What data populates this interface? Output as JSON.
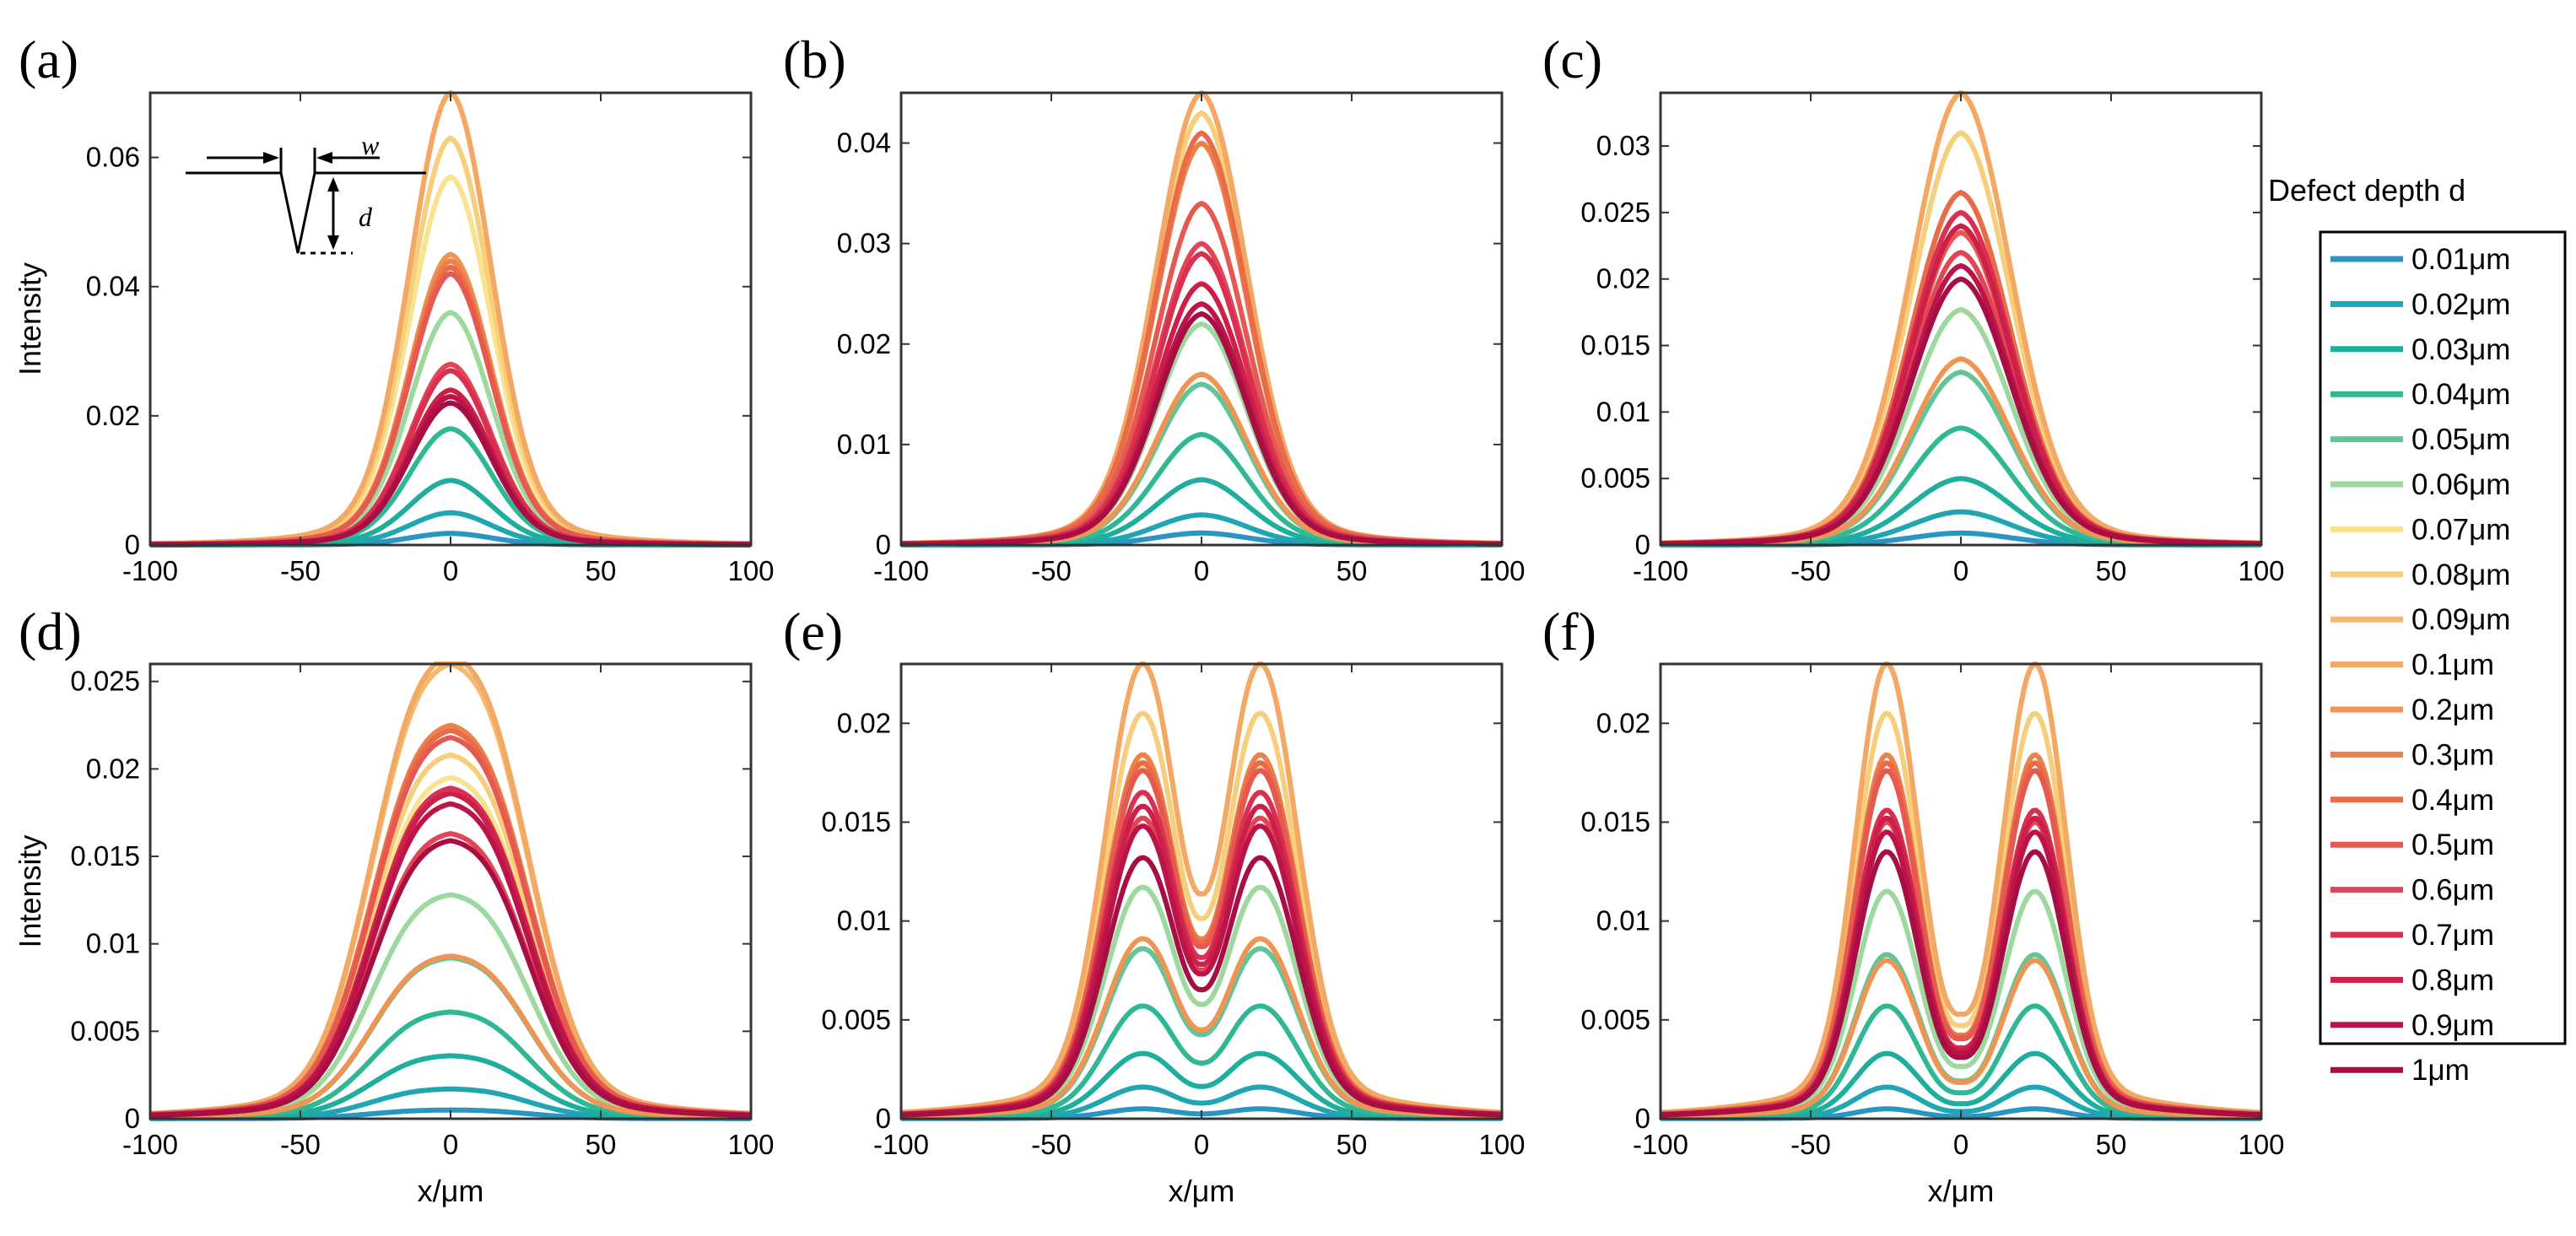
{
  "figure": {
    "ylabel": "Intensity",
    "xlabel": "x/μm",
    "xlim": [
      -100,
      100
    ],
    "xticks": [
      -100,
      -50,
      0,
      50,
      100
    ],
    "inset": {
      "w_label": "w",
      "d_label": "d"
    }
  },
  "legend": {
    "title": "Defect depth d",
    "entries": [
      {
        "label": "0.01μm",
        "color": "#2a94c4"
      },
      {
        "label": "0.02μm",
        "color": "#1fa6b2"
      },
      {
        "label": "0.03μm",
        "color": "#1eae9e"
      },
      {
        "label": "0.04μm",
        "color": "#30b896"
      },
      {
        "label": "0.05μm",
        "color": "#62c59a"
      },
      {
        "label": "0.06μm",
        "color": "#9dd89f"
      },
      {
        "label": "0.07μm",
        "color": "#fae28f"
      },
      {
        "label": "0.08μm",
        "color": "#f7ce7c"
      },
      {
        "label": "0.09μm",
        "color": "#f5ba6e"
      },
      {
        "label": "0.1μm",
        "color": "#f3a863"
      },
      {
        "label": "0.2μm",
        "color": "#ef9553"
      },
      {
        "label": "0.3μm",
        "color": "#ec8149"
      },
      {
        "label": "0.4μm",
        "color": "#e96c4a"
      },
      {
        "label": "0.5μm",
        "color": "#e65951"
      },
      {
        "label": "0.6μm",
        "color": "#e24556"
      },
      {
        "label": "0.7μm",
        "color": "#d9304f"
      },
      {
        "label": "0.8μm",
        "color": "#cc1f4a"
      },
      {
        "label": "0.9μm",
        "color": "#bb1448"
      },
      {
        "label": "1μm",
        "color": "#a70e44"
      }
    ]
  },
  "chart_data": [
    {
      "type": "line",
      "panel": "(a)",
      "ylabel": "Intensity",
      "xlabel": "",
      "ylim": [
        0,
        0.07
      ],
      "yticks": [
        0,
        0.02,
        0.04,
        0.06
      ],
      "ytick_labels": [
        "0",
        "0.02",
        "0.04",
        "0.06"
      ],
      "xticks": [
        -100,
        -50,
        0,
        50,
        100
      ],
      "xlim": [
        -100,
        100
      ],
      "x": [
        -100,
        -50,
        -25,
        0,
        25,
        50,
        100
      ],
      "profile": {
        "form": "gaussian",
        "sigma_um": 13.5,
        "separation_um": 0,
        "center_dip": 0
      },
      "peaks": [
        0.0018,
        0.005,
        0.01,
        0.018,
        0.027,
        0.036,
        0.057,
        0.063,
        0.07,
        0.07,
        0.045,
        0.044,
        0.043,
        0.042,
        0.028,
        0.027,
        0.024,
        0.023,
        0.022
      ]
    },
    {
      "type": "line",
      "panel": "(b)",
      "ylabel": "",
      "xlabel": "",
      "ylim": [
        0,
        0.045
      ],
      "yticks": [
        0,
        0.01,
        0.02,
        0.03,
        0.04
      ],
      "ytick_labels": [
        "0",
        "0.01",
        "0.02",
        "0.03",
        "0.04"
      ],
      "xticks": [
        -100,
        -50,
        0,
        50,
        100
      ],
      "xlim": [
        -100,
        100
      ],
      "x": [
        -100,
        -50,
        -25,
        0,
        25,
        50,
        100
      ],
      "profile": {
        "form": "gaussian",
        "sigma_um": 15,
        "separation_um": 0,
        "center_dip": 0
      },
      "peaks": [
        0.0012,
        0.003,
        0.0065,
        0.011,
        0.016,
        0.022,
        0.041,
        0.043,
        0.045,
        0.045,
        0.017,
        0.04,
        0.041,
        0.034,
        0.03,
        0.029,
        0.026,
        0.024,
        0.023
      ]
    },
    {
      "type": "line",
      "panel": "(c)",
      "ylabel": "",
      "xlabel": "",
      "ylim": [
        0,
        0.034
      ],
      "yticks": [
        0,
        0.005,
        0.01,
        0.015,
        0.02,
        0.025,
        0.03
      ],
      "ytick_labels": [
        "0",
        "0.005",
        "0.01",
        "0.015",
        "0.02",
        "0.025",
        "0.03"
      ],
      "xticks": [
        -100,
        -50,
        0,
        50,
        100
      ],
      "xlim": [
        -100,
        100
      ],
      "x": [
        -100,
        -50,
        -25,
        0,
        25,
        50,
        100
      ],
      "profile": {
        "form": "gaussian",
        "sigma_um": 16.5,
        "separation_um": 0,
        "center_dip": 0
      },
      "peaks": [
        0.0009,
        0.0025,
        0.005,
        0.0088,
        0.013,
        0.0177,
        0.0265,
        0.031,
        0.034,
        0.034,
        0.014,
        0.0265,
        0.0265,
        0.0235,
        0.022,
        0.025,
        0.024,
        0.021,
        0.02
      ]
    },
    {
      "type": "line",
      "panel": "(d)",
      "ylabel": "Intensity",
      "xlabel": "x/μm",
      "ylim": [
        0,
        0.026
      ],
      "yticks": [
        0,
        0.005,
        0.01,
        0.015,
        0.02,
        0.025
      ],
      "ytick_labels": [
        "0",
        "0.005",
        "0.01",
        "0.015",
        "0.02",
        "0.025"
      ],
      "xticks": [
        -100,
        -50,
        0,
        50,
        100
      ],
      "xlim": [
        -100,
        100
      ],
      "x": [
        -100,
        -50,
        -25,
        0,
        25,
        50,
        100
      ],
      "profile": {
        "form": "double-gaussian",
        "sigma_um": 16,
        "separation_um": 13,
        "center_dip": 0.04
      },
      "peaks": [
        0.0005,
        0.0017,
        0.0036,
        0.0061,
        0.0092,
        0.0128,
        0.0195,
        0.0208,
        0.026,
        0.0265,
        0.0093,
        0.0225,
        0.0222,
        0.0218,
        0.0163,
        0.0189,
        0.0186,
        0.018,
        0.0159
      ]
    },
    {
      "type": "line",
      "panel": "(e)",
      "ylabel": "",
      "xlabel": "x/μm",
      "ylim": [
        0,
        0.023
      ],
      "yticks": [
        0,
        0.005,
        0.01,
        0.015,
        0.02
      ],
      "ytick_labels": [
        "0",
        "0.005",
        "0.01",
        "0.015",
        "0.02"
      ],
      "xticks": [
        -100,
        -50,
        0,
        50,
        100
      ],
      "xlim": [
        -100,
        100
      ],
      "x": [
        -100,
        -50,
        -25,
        0,
        25,
        50,
        100
      ],
      "profile": {
        "form": "double-gaussian",
        "sigma_um": 12,
        "separation_um": 20,
        "center_dip": 0.3
      },
      "peaks": [
        0.0005,
        0.0016,
        0.0033,
        0.0057,
        0.0086,
        0.0117,
        0.0178,
        0.0205,
        0.023,
        0.023,
        0.0091,
        0.0184,
        0.018,
        0.0176,
        0.0152,
        0.0165,
        0.0158,
        0.0148,
        0.0132
      ]
    },
    {
      "type": "line",
      "panel": "(f)",
      "ylabel": "",
      "xlabel": "x/μm",
      "ylim": [
        0,
        0.023
      ],
      "yticks": [
        0,
        0.005,
        0.01,
        0.015,
        0.02
      ],
      "ytick_labels": [
        "0",
        "0.005",
        "0.01",
        "0.015",
        "0.02"
      ],
      "xticks": [
        -100,
        -50,
        0,
        50,
        100
      ],
      "xlim": [
        -100,
        100
      ],
      "x": [
        -100,
        -50,
        -25,
        0,
        25,
        50,
        100
      ],
      "profile": {
        "form": "double-gaussian",
        "sigma_um": 10,
        "separation_um": 25,
        "center_dip": 0.55
      },
      "peaks": [
        0.0005,
        0.0016,
        0.0033,
        0.0057,
        0.0083,
        0.0115,
        0.0176,
        0.0205,
        0.023,
        0.023,
        0.008,
        0.0184,
        0.018,
        0.0176,
        0.015,
        0.0156,
        0.0152,
        0.0145,
        0.0135
      ]
    }
  ]
}
